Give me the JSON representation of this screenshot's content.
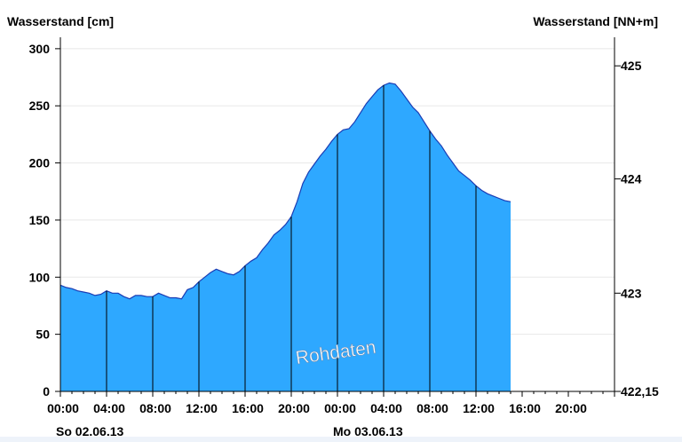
{
  "chart_data": {
    "type": "area",
    "left_axis_title": "Wasserstand [cm]",
    "right_axis_title": "Wasserstand [NN+m]",
    "annotation": "Rohdaten",
    "ylim": [
      0,
      310
    ],
    "y_ticks": [
      0,
      50,
      100,
      150,
      200,
      250,
      300
    ],
    "right_ticks": [
      {
        "label": "425",
        "cm": 285
      },
      {
        "label": "424",
        "cm": 186
      },
      {
        "label": "423",
        "cm": 86
      },
      {
        "label": "422,15",
        "cm": 0
      }
    ],
    "x_range_hours": [
      0,
      48
    ],
    "x_ticks": [
      {
        "h": 0,
        "label": "00:00"
      },
      {
        "h": 4,
        "label": "04:00"
      },
      {
        "h": 8,
        "label": "08:00"
      },
      {
        "h": 12,
        "label": "12:00"
      },
      {
        "h": 16,
        "label": "16:00"
      },
      {
        "h": 20,
        "label": "20:00"
      },
      {
        "h": 24,
        "label": "00:00"
      },
      {
        "h": 28,
        "label": "04:00"
      },
      {
        "h": 32,
        "label": "08:00"
      },
      {
        "h": 36,
        "label": "12:00"
      },
      {
        "h": 40,
        "label": "16:00"
      },
      {
        "h": 44,
        "label": "20:00"
      }
    ],
    "date_labels": [
      {
        "h": 0,
        "label": "So 02.06.13"
      },
      {
        "h": 24,
        "label": "Mo 03.06.13"
      }
    ],
    "fill_color": "#2ea8ff",
    "line_color": "#1a3cb4",
    "series": {
      "hours": [
        0,
        0.5,
        1,
        1.5,
        2,
        2.5,
        3,
        3.5,
        4,
        4.5,
        5,
        5.5,
        6,
        6.5,
        7,
        7.5,
        8,
        8.5,
        9,
        9.5,
        10,
        10.5,
        11,
        11.5,
        12,
        12.5,
        13,
        13.5,
        14,
        14.5,
        15,
        15.5,
        16,
        16.5,
        17,
        17.5,
        18,
        18.5,
        19,
        19.5,
        20,
        20.5,
        21,
        21.5,
        22,
        22.5,
        23,
        23.5,
        24,
        24.5,
        25,
        25.5,
        26,
        26.5,
        27,
        27.5,
        28,
        28.5,
        29,
        29.5,
        30,
        30.5,
        31,
        31.5,
        32,
        32.5,
        33,
        33.5,
        34,
        34.5,
        35,
        35.5,
        36,
        36.5,
        37,
        37.5,
        38,
        38.5,
        39
      ],
      "values": [
        93,
        91,
        90,
        88,
        87,
        86,
        84,
        85,
        88,
        86,
        86,
        83,
        81,
        84,
        84,
        83,
        83,
        86,
        84,
        82,
        82,
        81,
        89,
        91,
        96,
        100,
        104,
        107,
        105,
        103,
        102,
        105,
        110,
        114,
        117,
        124,
        130,
        137,
        141,
        146,
        153,
        166,
        182,
        192,
        199,
        206,
        212,
        219,
        225,
        229,
        230,
        236,
        244,
        252,
        258,
        264,
        268,
        270,
        269,
        263,
        256,
        249,
        244,
        236,
        228,
        221,
        215,
        207,
        200,
        193,
        189,
        185,
        180,
        176,
        173,
        171,
        169,
        167,
        166
      ]
    }
  }
}
